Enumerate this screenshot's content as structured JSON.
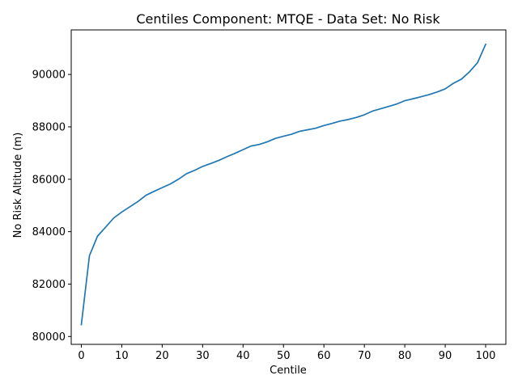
{
  "chart_data": {
    "type": "line",
    "title": "Centiles Component: MTQE - Data Set: No Risk",
    "xlabel": "Centile",
    "ylabel": "No Risk Altitude (m)",
    "xlim": [
      -2.5,
      105
    ],
    "ylim": [
      79700,
      91700
    ],
    "x_ticks": [
      0,
      10,
      20,
      30,
      40,
      50,
      60,
      70,
      80,
      90,
      100
    ],
    "x_tick_labels": [
      "0",
      "10",
      "20",
      "30",
      "40",
      "50",
      "60",
      "70",
      "80",
      "90",
      "100"
    ],
    "y_ticks": [
      80000,
      82000,
      84000,
      86000,
      88000,
      90000
    ],
    "y_tick_labels": [
      "80000",
      "82000",
      "84000",
      "86000",
      "88000",
      "90000"
    ],
    "grid": false,
    "series": [
      {
        "color": "#1f77b4",
        "x": [
          0,
          2,
          4,
          6,
          8,
          10,
          12,
          14,
          16,
          18,
          20,
          22,
          24,
          26,
          28,
          30,
          32,
          34,
          36,
          38,
          40,
          42,
          44,
          46,
          48,
          50,
          52,
          54,
          56,
          58,
          60,
          62,
          64,
          66,
          68,
          70,
          72,
          74,
          76,
          78,
          80,
          82,
          84,
          86,
          88,
          90,
          92,
          94,
          96,
          98,
          100
        ],
        "y": [
          80450,
          83080,
          83830,
          84170,
          84520,
          84750,
          84950,
          85150,
          85390,
          85540,
          85680,
          85820,
          86000,
          86210,
          86340,
          86490,
          86600,
          86720,
          86860,
          86990,
          87130,
          87270,
          87330,
          87430,
          87560,
          87640,
          87720,
          87830,
          87890,
          87950,
          88050,
          88130,
          88220,
          88280,
          88360,
          88460,
          88600,
          88690,
          88780,
          88870,
          89000,
          89070,
          89150,
          89230,
          89330,
          89450,
          89660,
          89820,
          90100,
          90450,
          91150
        ]
      }
    ]
  }
}
